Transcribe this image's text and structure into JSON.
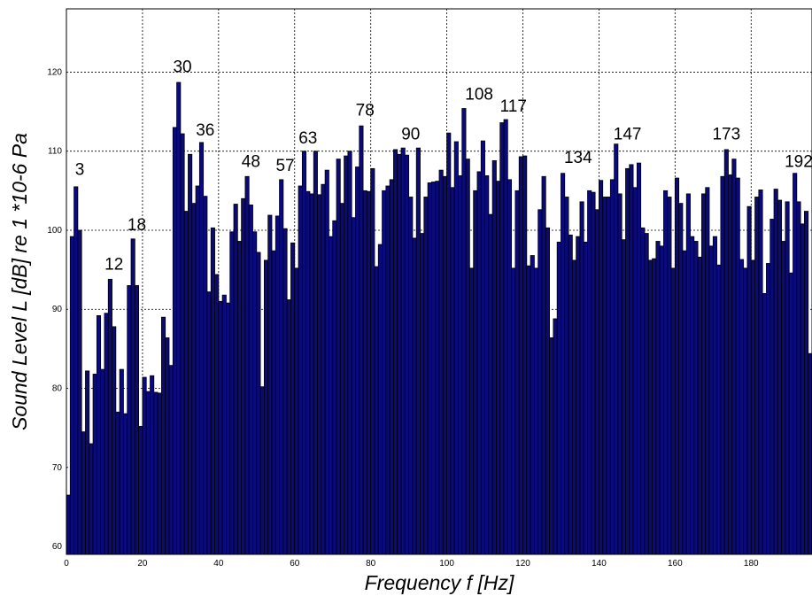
{
  "chart_data": {
    "type": "bar",
    "title": "",
    "xlabel": "Frequency  f [Hz]",
    "ylabel": "Sound Level L [dB] re 1 *10-6 Pa",
    "xlim": [
      0,
      196
    ],
    "ylim": [
      59,
      128
    ],
    "grid": true,
    "bar_color": "#0a0a7a",
    "bar_edge_color": "#000000",
    "x_ticks": [
      0,
      20,
      40,
      60,
      80,
      100,
      120,
      140,
      160,
      180
    ],
    "y_ticks": [
      60,
      70,
      80,
      90,
      100,
      110,
      120
    ],
    "peak_labels": [
      {
        "x": 3,
        "text": "3",
        "y": 107
      },
      {
        "x": 12,
        "text": "12",
        "y": 95
      },
      {
        "x": 18,
        "text": "18",
        "y": 100
      },
      {
        "x": 30,
        "text": "30",
        "y": 120
      },
      {
        "x": 36,
        "text": "36",
        "y": 112
      },
      {
        "x": 48,
        "text": "48",
        "y": 108
      },
      {
        "x": 57,
        "text": "57",
        "y": 107.5
      },
      {
        "x": 63,
        "text": "63",
        "y": 111
      },
      {
        "x": 78,
        "text": "78",
        "y": 114.5
      },
      {
        "x": 90,
        "text": "90",
        "y": 111.5
      },
      {
        "x": 108,
        "text": "108",
        "y": 116.5
      },
      {
        "x": 117,
        "text": "117",
        "y": 115
      },
      {
        "x": 134,
        "text": "134",
        "y": 108.5
      },
      {
        "x": 147,
        "text": "147",
        "y": 111.5
      },
      {
        "x": 173,
        "text": "173",
        "y": 111.5
      },
      {
        "x": 192,
        "text": "192",
        "y": 108
      }
    ],
    "values": [
      66.5,
      99.2,
      105.5,
      100.0,
      74.5,
      82.2,
      73.0,
      81.8,
      89.2,
      82.4,
      89.5,
      93.8,
      87.8,
      77.0,
      82.4,
      76.8,
      93.0,
      98.9,
      93.0,
      75.2,
      81.4,
      79.6,
      81.6,
      79.5,
      79.4,
      89.0,
      86.4,
      82.9,
      113.0,
      118.7,
      112.2,
      102.4,
      109.6,
      103.4,
      105.6,
      111.1,
      104.3,
      92.2,
      100.3,
      94.4,
      91.0,
      91.8,
      90.8,
      99.8,
      103.3,
      98.6,
      104.0,
      106.8,
      103.2,
      99.8,
      97.2,
      80.2,
      96.2,
      101.9,
      97.4,
      101.8,
      106.4,
      100.2,
      91.2,
      98.4,
      95.2,
      105.6,
      110.0,
      104.9,
      104.6,
      110.0,
      104.5,
      105.8,
      107.6,
      99.2,
      101.2,
      109.0,
      103.4,
      109.4,
      110.0,
      101.6,
      108.0,
      113.2,
      105.0,
      104.9,
      107.8,
      95.4,
      98.2,
      105.0,
      105.6,
      106.4,
      110.2,
      109.6,
      110.4,
      109.5,
      104.2,
      99.0,
      110.4,
      99.6,
      104.2,
      106.0,
      106.1,
      106.2,
      107.6,
      106.8,
      112.3,
      105.4,
      111.2,
      106.9,
      115.4,
      109.0,
      95.2,
      105.0,
      107.4,
      111.3,
      106.9,
      102.0,
      108.8,
      106.2,
      113.6,
      114.0,
      106.4,
      95.2,
      105.0,
      109.3,
      109.4,
      95.5,
      96.8,
      95.2,
      102.6,
      106.8,
      100.3,
      86.4,
      88.8,
      98.5,
      107.2,
      104.2,
      99.4,
      96.2,
      99.2,
      103.6,
      98.5,
      105.0,
      104.8,
      102.6,
      106.3,
      104.2,
      104.2,
      106.4,
      110.9,
      104.6,
      98.8,
      107.8,
      108.3,
      105.4,
      108.5,
      100.3,
      99.6,
      96.2,
      96.4,
      98.6,
      98.0,
      105.0,
      104.2,
      95.2,
      106.6,
      103.4,
      97.4,
      104.6,
      99.2,
      98.6,
      96.6,
      104.6,
      105.4,
      98.0,
      99.2,
      95.6,
      106.8,
      110.2,
      107.0,
      109.0,
      106.6,
      96.3,
      95.2,
      103.0,
      96.2,
      104.2,
      105.1,
      92.0,
      95.8,
      101.4,
      105.2,
      103.8,
      98.6,
      103.6,
      94.6,
      107.2,
      103.6,
      100.8,
      102.4,
      84.4
    ]
  }
}
